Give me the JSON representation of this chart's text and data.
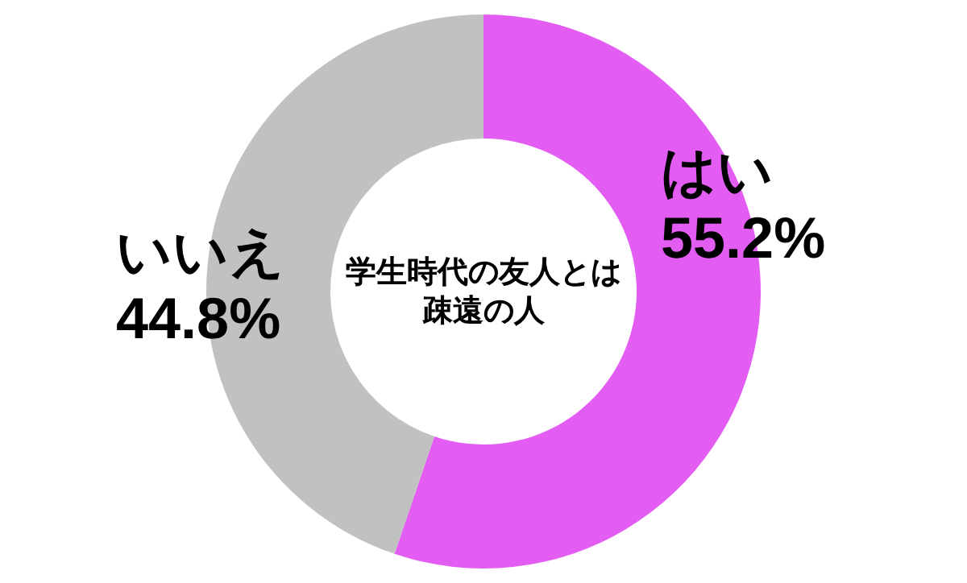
{
  "chart_data": {
    "type": "donut",
    "title": "学生時代の友人とは疎遠の人",
    "categories": [
      "はい",
      "いいえ"
    ],
    "values": [
      55.2,
      44.8
    ],
    "colors": [
      "#e35df2",
      "#c1c1c1"
    ],
    "value_labels": [
      "55.2%",
      "44.8%"
    ]
  }
}
